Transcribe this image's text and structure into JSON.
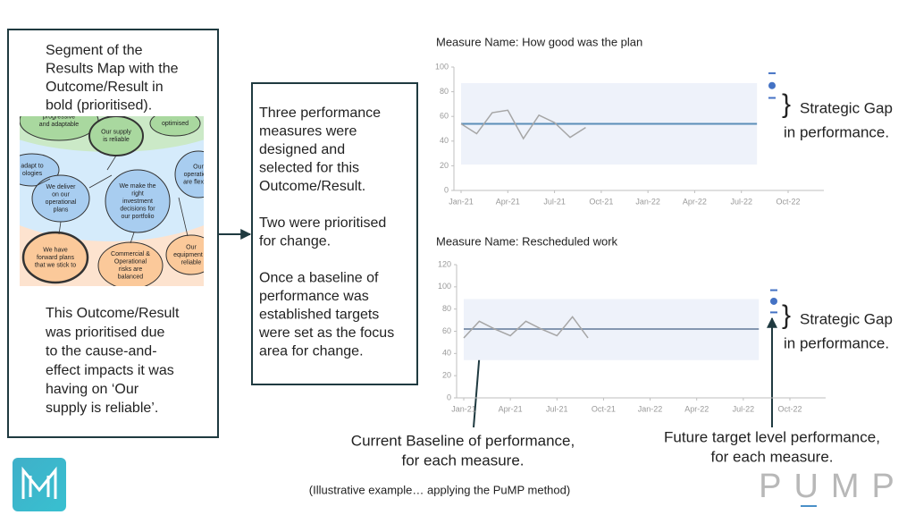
{
  "left_box": {
    "top_text": [
      "Segment of the",
      "Results Map with the",
      "Outcome/Result in",
      "bold (prioritised)."
    ],
    "bottom_text": [
      "This Outcome/Result",
      "was prioritised due",
      "to the cause-and-",
      "effect impacts it was",
      "having on ‘Our",
      "supply is reliable’."
    ]
  },
  "results_map": {
    "nodes": [
      {
        "label": [
          "progressive",
          "and adaptable"
        ]
      },
      {
        "label": [
          "Our supply",
          "is reliable"
        ]
      },
      {
        "label": [
          "optimised"
        ]
      },
      {
        "label": [
          "adapt to",
          "ologies"
        ]
      },
      {
        "label": [
          "We deliver",
          "on our",
          "operational",
          "plans"
        ]
      },
      {
        "label": [
          "We make the",
          "right",
          "investment",
          "decisions for",
          "our portfolio"
        ]
      },
      {
        "label": [
          "Our",
          "operations",
          "are flexible"
        ]
      },
      {
        "label": [
          "We have",
          "forward plans",
          "that we stick to"
        ]
      },
      {
        "label": [
          "Commercial &",
          "Operational",
          "risks are",
          "balanced"
        ]
      },
      {
        "label": [
          "Our",
          "equipment is",
          "reliable"
        ]
      }
    ]
  },
  "middle_box": {
    "text": [
      "Three performance",
      "measures were",
      "designed and",
      "selected for this",
      "Outcome/Result.",
      "",
      "Two were prioritised",
      "for change.",
      "",
      "Once a baseline of",
      "performance was",
      "established targets",
      "were set as the focus",
      "area for change."
    ]
  },
  "chart_data": [
    {
      "type": "line",
      "title": "Measure Name: How good was the plan",
      "categories": [
        "Jan-21",
        null,
        null,
        "Apr-21",
        null,
        null,
        "Jul-21",
        null,
        null,
        "Oct-21",
        null,
        null,
        "Jan-22",
        null,
        null,
        "Apr-22",
        null,
        null,
        "Jul-22",
        null,
        null,
        "Oct-22"
      ],
      "values": [
        54,
        46,
        63,
        65,
        42,
        61,
        55,
        43,
        51,
        null,
        null,
        null,
        null,
        null,
        null,
        null,
        null,
        null,
        null,
        null,
        null,
        null
      ],
      "color": "#a6a6a6",
      "baseline": 54,
      "baseline_color": "#5b8db8",
      "limits": [
        21,
        87
      ],
      "band_color": "#eef2fa",
      "target": 85,
      "target_range": [
        75,
        95
      ],
      "target_color": "#4472c4",
      "ylim": [
        0,
        100
      ],
      "yticks": [
        0,
        20,
        40,
        60,
        80,
        100
      ]
    },
    {
      "type": "line",
      "title": "Measure Name: Rescheduled  work",
      "categories": [
        "Jan-21",
        null,
        null,
        "Apr-21",
        null,
        null,
        "Jul-21",
        null,
        null,
        "Oct-21",
        null,
        null,
        "Jan-22",
        null,
        null,
        "Apr-22",
        null,
        null,
        "Jul-22",
        null,
        null,
        "Oct-22"
      ],
      "values": [
        54,
        69,
        62,
        56,
        69,
        62,
        56,
        73,
        54,
        null,
        null,
        null,
        null,
        null,
        null,
        null,
        null,
        null,
        null,
        null,
        null,
        null
      ],
      "color": "#a6a6a6",
      "baseline": 62,
      "baseline_color": "#8497b0",
      "limits": [
        34,
        89
      ],
      "band_color": "#eef2fa",
      "target": 87,
      "target_range": [
        77,
        97
      ],
      "target_color": "#4472c4",
      "ylim": [
        0,
        120
      ],
      "yticks": [
        0,
        20,
        40,
        60,
        80,
        100,
        120
      ]
    }
  ],
  "gap_label": [
    "Strategic Gap",
    "in performance."
  ],
  "gap_brace": "}",
  "baseline_note": [
    "Current Baseline of performance,",
    "for each measure."
  ],
  "target_note": [
    "Future target level performance,",
    "for each measure."
  ],
  "footer": "(Illustrative example… applying the PuMP method)",
  "logo": "PUMP"
}
